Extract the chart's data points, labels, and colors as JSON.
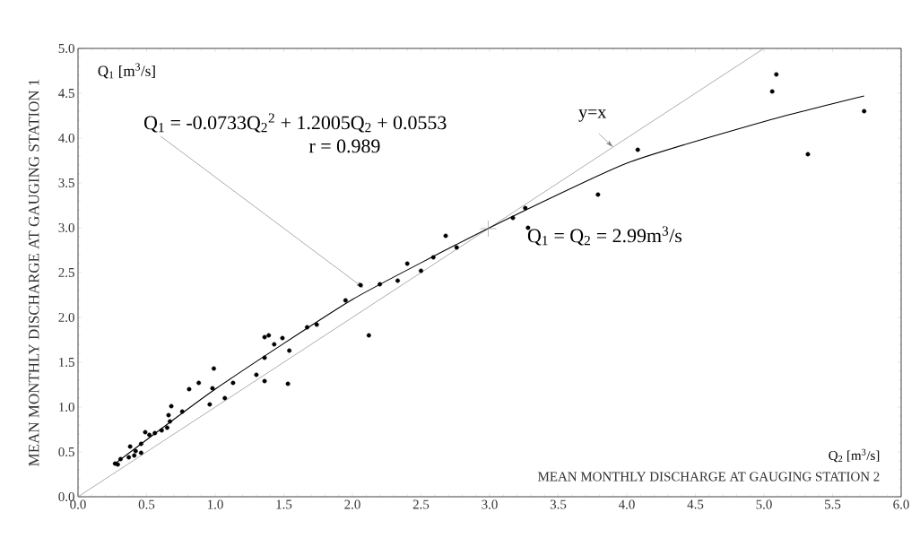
{
  "chart_data": {
    "type": "scatter",
    "xlabel": "MEAN MONTHLY DISCHARGE AT GAUGING STATION 2",
    "ylabel": "MEAN MONTHLY DISCHARGE AT GAUGING STATION 1",
    "xlim": [
      0,
      6
    ],
    "ylim": [
      0,
      5
    ],
    "xticks": [
      {
        "value": 0,
        "label": "0.0"
      },
      {
        "value": 0.5,
        "label": "0.5"
      },
      {
        "value": 1,
        "label": "1.0"
      },
      {
        "value": 1.5,
        "label": "1.5"
      },
      {
        "value": 2,
        "label": "2.0"
      },
      {
        "value": 2.5,
        "label": "2.5"
      },
      {
        "value": 3,
        "label": "3.0"
      },
      {
        "value": 3.5,
        "label": "3.5"
      },
      {
        "value": 4,
        "label": "4.0"
      },
      {
        "value": 4.5,
        "label": "4.5"
      },
      {
        "value": 5,
        "label": "5.0"
      },
      {
        "value": 5.5,
        "label": "5.5"
      },
      {
        "value": 6,
        "label": "6.0"
      }
    ],
    "yticks": [
      {
        "value": 0,
        "label": "0.0"
      },
      {
        "value": 0.5,
        "label": "0.5"
      },
      {
        "value": 1,
        "label": "1.0"
      },
      {
        "value": 1.5,
        "label": "1.5"
      },
      {
        "value": 2,
        "label": "2.0"
      },
      {
        "value": 2.5,
        "label": "2.5"
      },
      {
        "value": 3,
        "label": "3.0"
      },
      {
        "value": 3.5,
        "label": "3.5"
      },
      {
        "value": 4,
        "label": "4.0"
      },
      {
        "value": 4.5,
        "label": "4.5"
      },
      {
        "value": 5,
        "label": "5.0"
      }
    ],
    "marker": "circle",
    "series": [
      {
        "type": "line",
        "marker": "none",
        "color": "#999999",
        "x": [
          0,
          5
        ],
        "values": [
          0,
          5
        ]
      },
      {
        "type": "line",
        "marker": "none",
        "color": "#000000",
        "x": [
          0.27,
          1,
          2,
          3,
          4,
          5.06,
          5.73
        ],
        "values": [
          0.37,
          1.2,
          2.2,
          3.0,
          3.72,
          4.21,
          4.47
        ]
      },
      {
        "color": "#000000",
        "x": [
          5.06,
          5.09,
          5.73,
          5.32,
          4.08,
          3.79,
          3.26,
          3.28,
          3.17,
          2.68,
          2.76,
          2.59,
          2.4,
          2.5,
          2.33,
          2.2,
          2.06,
          1.95,
          2.12,
          1.67,
          1.74,
          1.36,
          1.39,
          1.49,
          1.43,
          1.54,
          1.36,
          1.3,
          1.36,
          1.53,
          1.13,
          1.07,
          0.99,
          0.98,
          0.96,
          0.88,
          0.81,
          0.76,
          0.68,
          0.66,
          0.67,
          0.65,
          0.61,
          0.56,
          0.52,
          0.49,
          0.46,
          0.42,
          0.41,
          0.38,
          0.37,
          0.31,
          0.27,
          0.29,
          0.46
        ],
        "values": [
          4.52,
          4.71,
          4.3,
          3.82,
          3.87,
          3.37,
          3.22,
          3.0,
          3.11,
          2.91,
          2.78,
          2.67,
          2.6,
          2.52,
          2.41,
          2.37,
          2.36,
          2.19,
          1.8,
          1.89,
          1.92,
          1.78,
          1.8,
          1.77,
          1.7,
          1.63,
          1.55,
          1.36,
          1.29,
          1.26,
          1.27,
          1.1,
          1.43,
          1.21,
          1.03,
          1.27,
          1.2,
          0.95,
          1.01,
          0.91,
          0.84,
          0.77,
          0.74,
          0.71,
          0.69,
          0.72,
          0.59,
          0.51,
          0.46,
          0.56,
          0.44,
          0.42,
          0.37,
          0.36,
          0.49
        ]
      },
      {
        "marker": "cross",
        "color": "#888888",
        "x": [
          2.99
        ],
        "values": [
          2.99
        ]
      }
    ],
    "annotations": [
      "Q$_{1}$ [m$^{3}$/s]",
      {
        "text": "Q$_{1}$ = -0.0733Q$_{2}$$^{2}$ + 1.2005Q$_{2}$ + 0.0553",
        "x": 2.08,
        "y": 2.33
      },
      "r = 0.989",
      {
        "text": "y=x",
        "x": 3.9,
        "y": 3.9
      },
      {
        "text": "Q$_{1}$ = Q$_{2}$ = 2.99m$^{3}$/s",
        "x": 2.99,
        "y": 2.99
      },
      "Q$_{2}$ [m$^{3}$/s]"
    ]
  }
}
